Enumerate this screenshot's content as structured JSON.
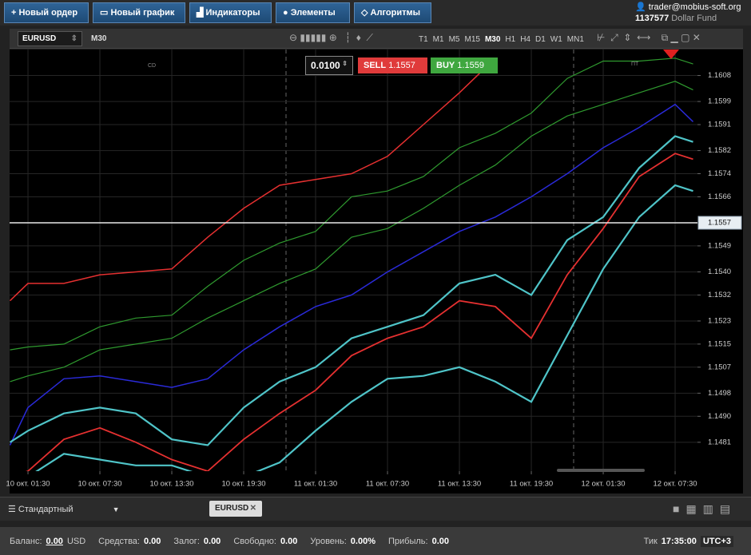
{
  "toolbar": {
    "buttons": [
      "Новый ордер",
      "Новый график",
      "Индикаторы",
      "Элементы",
      "Алгоритмы"
    ]
  },
  "account": {
    "email": "trader@mobius-soft.org",
    "id": "1137577",
    "name": "Dollar Fund"
  },
  "chart_window": {
    "symbol": "EURUSD",
    "timeframe": "M30",
    "timeframes": [
      "T1",
      "M1",
      "M5",
      "M15",
      "M30",
      "H1",
      "H4",
      "D1",
      "W1",
      "MN1"
    ],
    "order": {
      "lot": "0.0100",
      "sell_label": "SELL",
      "sell_price": "1.1557",
      "buy_label": "BUY",
      "buy_price": "1.1559"
    },
    "markers": [
      "CD",
      "ПТ"
    ]
  },
  "chart_data": {
    "type": "line",
    "x": [
      -3,
      0,
      6,
      12,
      18,
      24,
      30,
      36,
      42,
      48,
      54,
      60,
      66,
      72,
      78,
      84,
      90,
      96,
      102,
      108,
      111
    ],
    "xlim": [
      -3.07,
      111.73
    ],
    "xticks": [
      {
        "value": 0,
        "label": "10 окт. 01:30"
      },
      {
        "value": 12,
        "label": "10 окт. 07:30"
      },
      {
        "value": 24,
        "label": "10 окт. 13:30"
      },
      {
        "value": 36,
        "label": "10 окт. 19:30"
      },
      {
        "value": 48,
        "label": "11 окт. 01:30"
      },
      {
        "value": 60,
        "label": "11 окт. 07:30"
      },
      {
        "value": 72,
        "label": "11 окт. 13:30"
      },
      {
        "value": 84,
        "label": "11 окт. 19:30"
      },
      {
        "value": 96,
        "label": "12 окт. 01:30"
      },
      {
        "value": 108,
        "label": "12 окт. 07:30"
      }
    ],
    "ylim": [
      1.1471,
      1.1617
    ],
    "yticks": [
      1.1608,
      1.1599,
      1.1591,
      1.1582,
      1.1574,
      1.1566,
      1.1549,
      {
        "value": 1.154,
        "label": "1.1540"
      },
      1.1532,
      1.1523,
      1.1515,
      1.1507,
      1.1498,
      {
        "value": 1.149,
        "label": "1.1490"
      },
      1.1481
    ],
    "grid": true,
    "current_price": 1.1557,
    "series": [
      {
        "color": "#e53030",
        "width": 1.5,
        "values": [
          1.153,
          1.1536,
          1.1536,
          1.1539,
          1.154,
          1.1541,
          1.1552,
          1.1562,
          1.157,
          1.1572,
          1.1574,
          1.158,
          1.1591,
          1.1602,
          1.1614,
          null,
          null,
          null,
          null,
          null,
          null
        ]
      },
      {
        "color": "#2f9a2f",
        "width": 1.2,
        "values": [
          1.1513,
          1.1514,
          1.1515,
          1.1521,
          1.1524,
          1.1525,
          1.1535,
          1.1544,
          1.155,
          1.1554,
          1.1566,
          1.1568,
          1.1573,
          1.1583,
          1.1588,
          1.1595,
          1.1607,
          1.1613,
          1.1613,
          1.1614,
          1.1612
        ]
      },
      {
        "color": "#2f9a2f",
        "width": 1.2,
        "values": [
          1.1502,
          1.1504,
          1.1507,
          1.1513,
          1.1515,
          1.1517,
          1.1524,
          1.153,
          1.1536,
          1.1541,
          1.1552,
          1.1555,
          1.1562,
          1.157,
          1.1577,
          1.1587,
          1.1594,
          1.1598,
          1.1602,
          1.1606,
          1.1603
        ]
      },
      {
        "color": "#2a2ad8",
        "width": 1.5,
        "values": [
          1.148,
          1.1493,
          1.1503,
          1.1504,
          1.1502,
          1.15,
          1.1503,
          1.1513,
          1.1521,
          1.1528,
          1.1532,
          1.154,
          1.1547,
          1.1554,
          1.1559,
          1.1566,
          1.1574,
          1.1583,
          1.159,
          1.1598,
          1.1592
        ]
      },
      {
        "color": "#4fc4c8",
        "width": 2.2,
        "values": [
          1.1481,
          1.1485,
          1.1491,
          1.1493,
          1.1491,
          1.1482,
          1.148,
          1.1493,
          1.1502,
          1.1507,
          1.1517,
          1.1521,
          1.1525,
          1.1536,
          1.1539,
          1.1532,
          1.1551,
          1.1559,
          1.1576,
          1.1587,
          1.1585
        ]
      },
      {
        "color": "#e53030",
        "width": 1.8,
        "values": [
          1.1469,
          1.1471,
          1.1482,
          1.1486,
          1.1481,
          1.1475,
          1.1471,
          1.1482,
          1.1491,
          1.1499,
          1.1511,
          1.1517,
          1.1521,
          1.153,
          1.1528,
          1.1517,
          1.1539,
          1.1555,
          1.1573,
          1.1581,
          1.1579
        ]
      },
      {
        "color": "#4fc4c8",
        "width": 2.2,
        "values": [
          null,
          1.1469,
          1.1477,
          1.1475,
          1.1473,
          1.1473,
          1.1469,
          1.1469,
          1.1474,
          1.1485,
          1.1495,
          1.1503,
          1.1504,
          1.1507,
          1.1502,
          1.1495,
          1.1518,
          1.1541,
          1.1559,
          1.157,
          1.1568
        ]
      }
    ]
  },
  "bottom": {
    "layout": "Стандартный",
    "tab": "EURUSD"
  },
  "status": {
    "items": [
      {
        "label": "Баланс:",
        "value": "0.00",
        "unit": "USD"
      },
      {
        "label": "Средства:",
        "value": "0.00"
      },
      {
        "label": "Залог:",
        "value": "0.00"
      },
      {
        "label": "Свободно:",
        "value": "0.00"
      },
      {
        "label": "Уровень:",
        "value": "0.00%"
      },
      {
        "label": "Прибыль:",
        "value": "0.00"
      }
    ],
    "tick_label": "Тик",
    "time": "17:35:00",
    "timezone": "UTC+3"
  }
}
